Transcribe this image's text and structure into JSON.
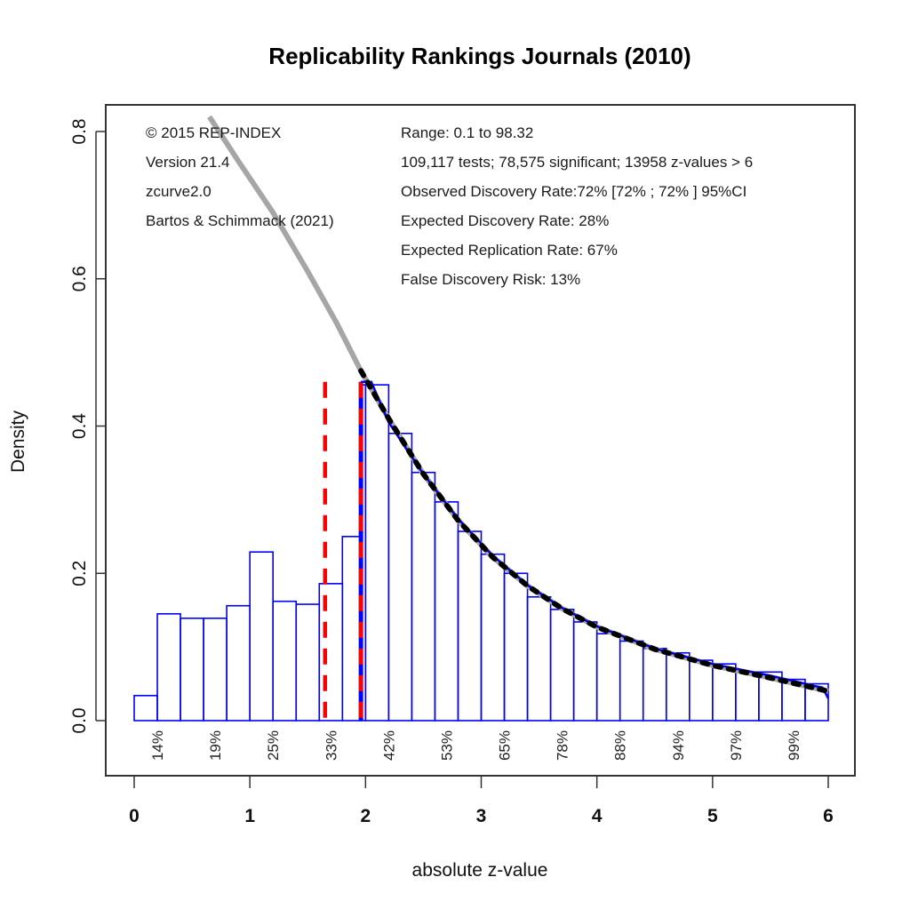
{
  "chart_data": {
    "type": "bar",
    "title": "Replicability Rankings Journals (2010)",
    "xlabel": "absolute z-value",
    "ylabel": "Density",
    "xlim": [
      0,
      6
    ],
    "ylim": [
      0,
      0.8
    ],
    "x_ticks": [
      0,
      1,
      2,
      3,
      4,
      5,
      6
    ],
    "x_tick_labels": [
      "0",
      "1",
      "2",
      "3",
      "4",
      "5",
      "6"
    ],
    "y_ticks": [
      0.0,
      0.2,
      0.4,
      0.6,
      0.8
    ],
    "y_tick_labels": [
      "0.0",
      "0.2",
      "0.4",
      "0.6",
      "0.8"
    ],
    "grid": false,
    "histogram": {
      "color": "#0000ff",
      "bins": [
        {
          "x0": 0.0,
          "x1": 0.2,
          "density": 0.034
        },
        {
          "x0": 0.2,
          "x1": 0.4,
          "density": 0.145
        },
        {
          "x0": 0.4,
          "x1": 0.6,
          "density": 0.139
        },
        {
          "x0": 0.6,
          "x1": 0.8,
          "density": 0.139
        },
        {
          "x0": 0.8,
          "x1": 1.0,
          "density": 0.156
        },
        {
          "x0": 1.0,
          "x1": 1.2,
          "density": 0.229
        },
        {
          "x0": 1.2,
          "x1": 1.4,
          "density": 0.162
        },
        {
          "x0": 1.4,
          "x1": 1.6,
          "density": 0.158
        },
        {
          "x0": 1.6,
          "x1": 1.8,
          "density": 0.186
        },
        {
          "x0": 1.8,
          "x1": 1.96,
          "density": 0.25
        },
        {
          "x0": 1.96,
          "x1": 2.0,
          "density": 0.456
        },
        {
          "x0": 2.0,
          "x1": 2.2,
          "density": 0.456
        },
        {
          "x0": 2.2,
          "x1": 2.4,
          "density": 0.39
        },
        {
          "x0": 2.4,
          "x1": 2.6,
          "density": 0.337
        },
        {
          "x0": 2.6,
          "x1": 2.8,
          "density": 0.297
        },
        {
          "x0": 2.8,
          "x1": 3.0,
          "density": 0.257
        },
        {
          "x0": 3.0,
          "x1": 3.2,
          "density": 0.226
        },
        {
          "x0": 3.2,
          "x1": 3.4,
          "density": 0.2
        },
        {
          "x0": 3.4,
          "x1": 3.6,
          "density": 0.168
        },
        {
          "x0": 3.6,
          "x1": 3.8,
          "density": 0.151
        },
        {
          "x0": 3.8,
          "x1": 4.0,
          "density": 0.134
        },
        {
          "x0": 4.0,
          "x1": 4.2,
          "density": 0.118
        },
        {
          "x0": 4.2,
          "x1": 4.4,
          "density": 0.108
        },
        {
          "x0": 4.4,
          "x1": 4.6,
          "density": 0.098
        },
        {
          "x0": 4.6,
          "x1": 4.8,
          "density": 0.092
        },
        {
          "x0": 4.8,
          "x1": 5.0,
          "density": 0.082
        },
        {
          "x0": 5.0,
          "x1": 5.2,
          "density": 0.077
        },
        {
          "x0": 5.2,
          "x1": 5.4,
          "density": 0.066
        },
        {
          "x0": 5.4,
          "x1": 5.6,
          "density": 0.066
        },
        {
          "x0": 5.6,
          "x1": 5.8,
          "density": 0.056
        },
        {
          "x0": 5.8,
          "x1": 6.0,
          "density": 0.05
        }
      ]
    },
    "series": [
      {
        "name": "zcurve-model-extrapolated",
        "style": "solid",
        "color": "#a6a6a6",
        "x": [
          0.65,
          0.9,
          1.2,
          1.5,
          1.75,
          1.96,
          2.2,
          2.5,
          2.8,
          3.1,
          3.4,
          3.7,
          4.0,
          4.5,
          5.0,
          5.5,
          6.0
        ],
        "y": [
          0.82,
          0.76,
          0.69,
          0.61,
          0.54,
          0.475,
          0.41,
          0.335,
          0.272,
          0.222,
          0.183,
          0.152,
          0.127,
          0.097,
          0.075,
          0.058,
          0.04
        ]
      },
      {
        "name": "zcurve-model-fit",
        "style": "dotted",
        "color": "#000000",
        "x": [
          1.96,
          2.2,
          2.5,
          2.8,
          3.1,
          3.4,
          3.7,
          4.0,
          4.5,
          5.0,
          5.5,
          6.0
        ],
        "y": [
          0.475,
          0.41,
          0.335,
          0.272,
          0.222,
          0.183,
          0.152,
          0.127,
          0.097,
          0.075,
          0.058,
          0.04
        ]
      },
      {
        "name": "density-estimate",
        "style": "solid",
        "color": "#0000ff",
        "x": [
          1.96,
          2.05,
          2.2,
          2.5,
          2.8,
          3.1,
          3.4,
          3.7,
          4.0,
          4.5,
          5.0,
          5.5,
          5.75,
          5.88,
          5.95,
          6.0
        ],
        "y": [
          0.46,
          0.46,
          0.405,
          0.335,
          0.274,
          0.224,
          0.184,
          0.153,
          0.128,
          0.098,
          0.077,
          0.061,
          0.052,
          0.047,
          0.045,
          0.03
        ]
      }
    ],
    "vertical_lines": [
      {
        "name": "observed-threshold",
        "x": 1.65,
        "y_top": 0.46,
        "style": "dashed",
        "color": "#ff0000"
      },
      {
        "name": "significance-threshold",
        "x": 1.96,
        "y_top": 0.46,
        "style": "dashed",
        "color": "#ff0000",
        "underlay_color": "#0000ff"
      }
    ],
    "power_labels": [
      {
        "x": 0.2,
        "label": "14%"
      },
      {
        "x": 0.7,
        "label": "19%"
      },
      {
        "x": 1.2,
        "label": "25%"
      },
      {
        "x": 1.7,
        "label": "33%"
      },
      {
        "x": 2.2,
        "label": "42%"
      },
      {
        "x": 2.7,
        "label": "53%"
      },
      {
        "x": 3.2,
        "label": "65%"
      },
      {
        "x": 3.7,
        "label": "78%"
      },
      {
        "x": 4.2,
        "label": "88%"
      },
      {
        "x": 4.7,
        "label": "94%"
      },
      {
        "x": 5.2,
        "label": "97%"
      },
      {
        "x": 5.7,
        "label": "99%"
      }
    ],
    "annotations_left": [
      "© 2015 REP-INDEX",
      "Version 21.4",
      "zcurve2.0",
      "Bartos & Schimmack (2021)"
    ],
    "annotations_right": [
      "Range: 0.1 to 98.32",
      "109,117 tests; 78,575 significant; 13958 z-values > 6",
      "Observed Discovery Rate:72% [72% ; 72% ] 95%CI",
      "Expected Discovery Rate: 28%",
      "Expected Replication Rate: 67%",
      "False Discovery Risk: 13%"
    ]
  }
}
